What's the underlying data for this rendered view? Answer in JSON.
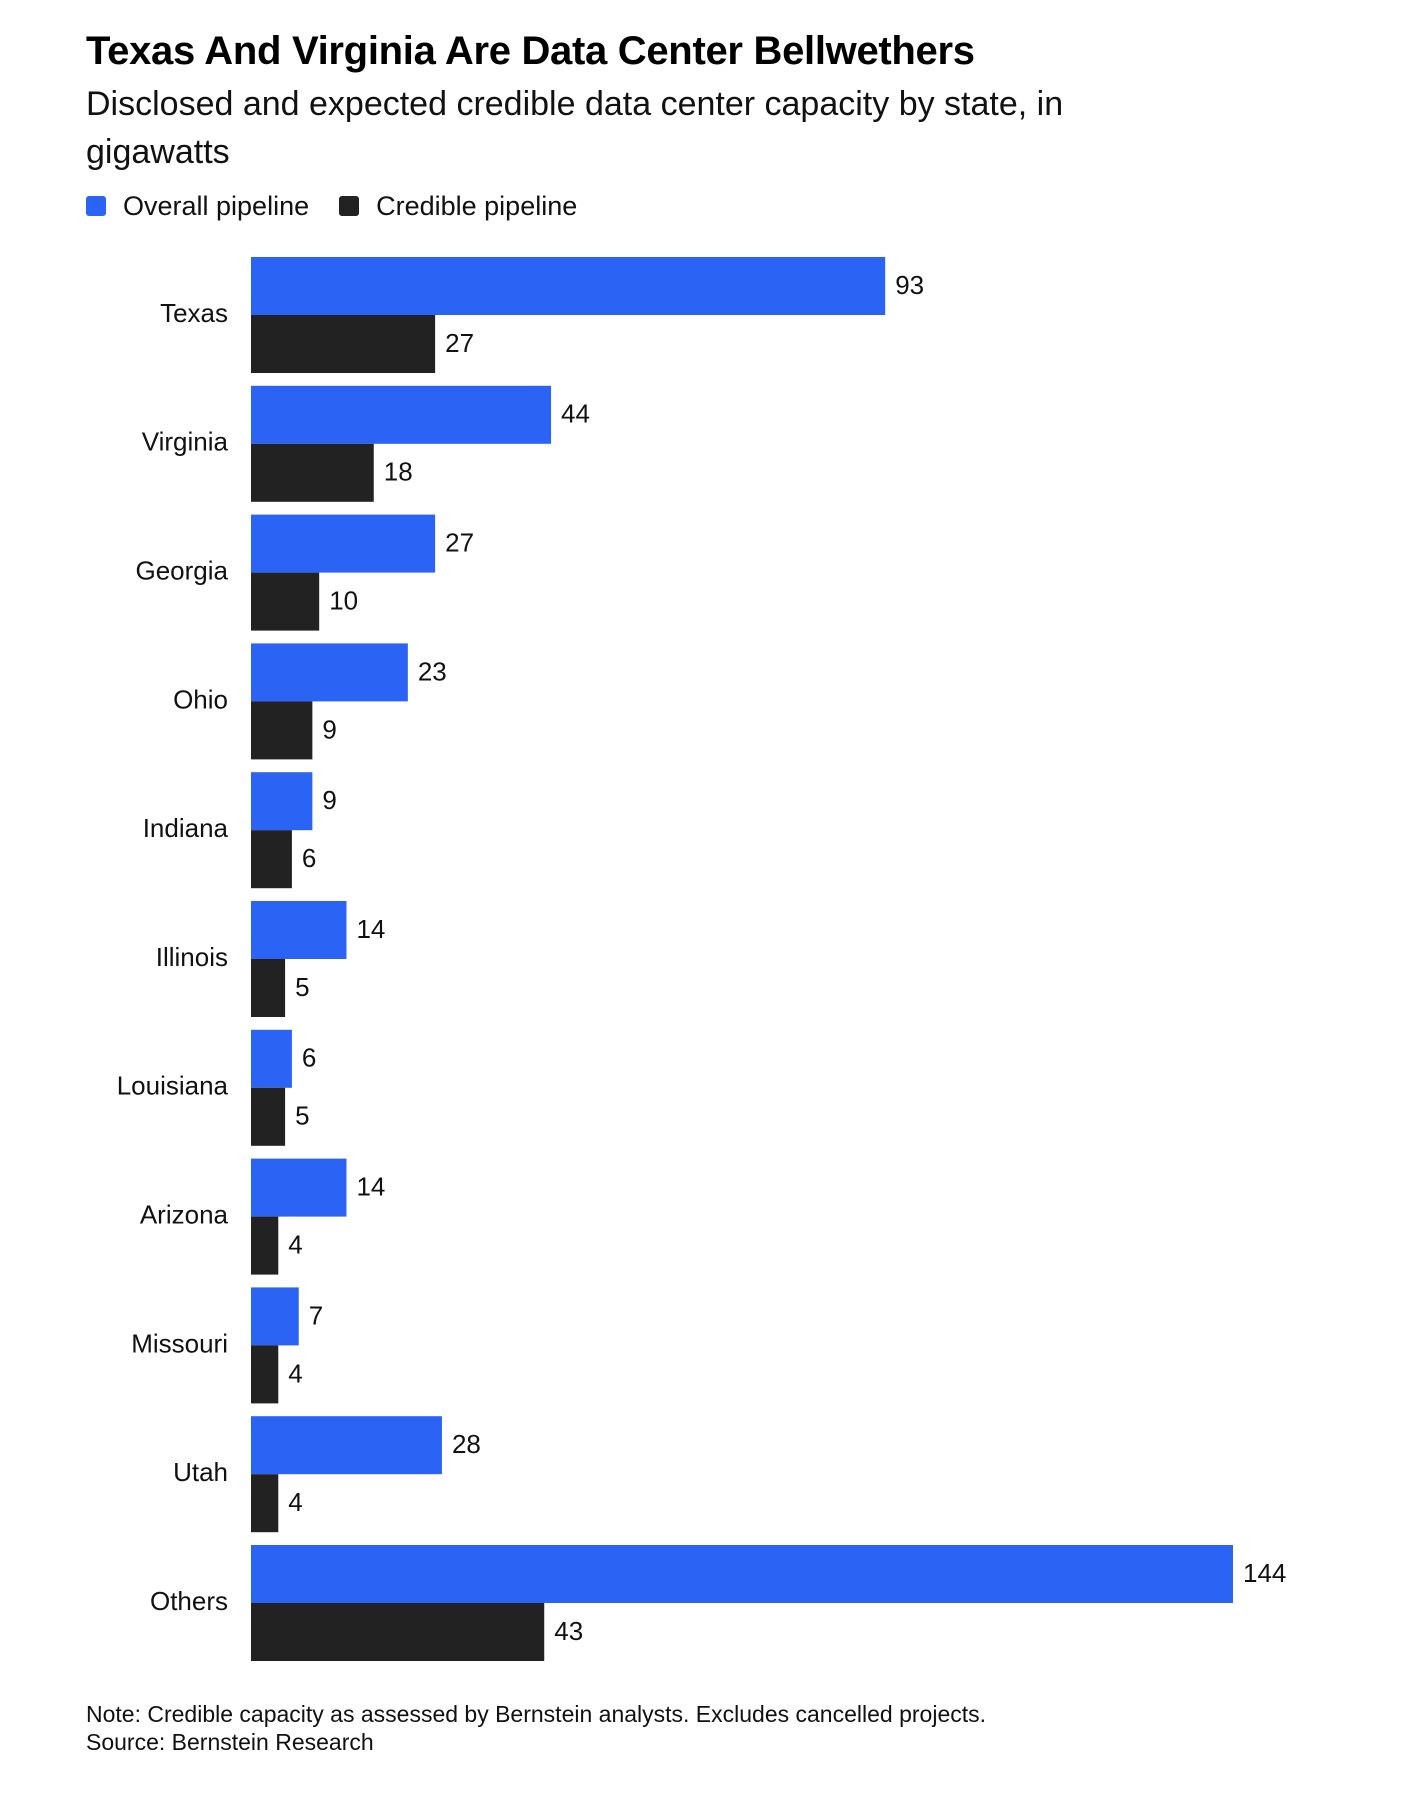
{
  "chart_data": {
    "type": "bar",
    "orientation": "horizontal",
    "title": "Texas And Virginia Are Data Center Bellwethers",
    "subtitle": "Disclosed and expected credible data center capacity by state, in gigawatts",
    "legend_placement": "top-left",
    "grid": false,
    "xlim": [
      0,
      144
    ],
    "categories": [
      "Texas",
      "Virginia",
      "Georgia",
      "Ohio",
      "Indiana",
      "Illinois",
      "Louisiana",
      "Arizona",
      "Missouri",
      "Utah",
      "Others"
    ],
    "series": [
      {
        "name": "Overall pipeline",
        "color": "#2b64f5",
        "values": [
          93,
          44,
          27,
          23,
          9,
          14,
          6,
          14,
          7,
          28,
          144
        ]
      },
      {
        "name": "Credible pipeline",
        "color": "#222222",
        "values": [
          27,
          18,
          10,
          9,
          6,
          5,
          5,
          4,
          4,
          4,
          43
        ]
      }
    ]
  },
  "footer": {
    "note": "Note: Credible capacity as assessed by Bernstein analysts. Excludes cancelled projects.",
    "source": "Source: Bernstein Research"
  }
}
